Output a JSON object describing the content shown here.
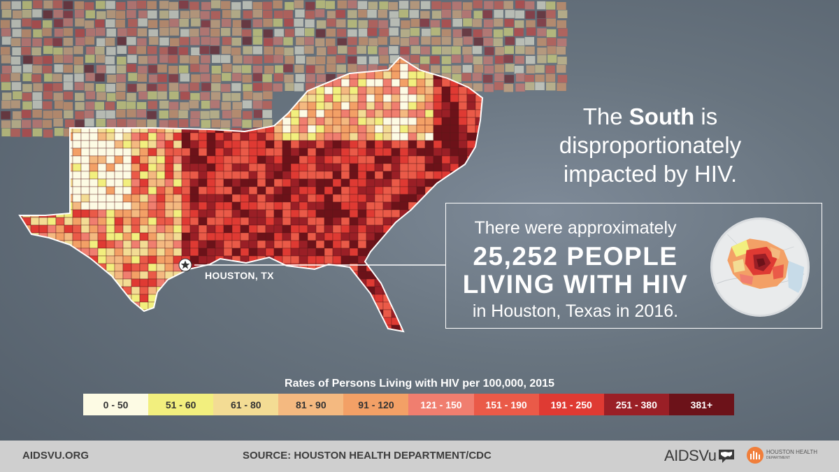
{
  "headline": {
    "line1_prefix": "The ",
    "line1_bold": "South",
    "line1_suffix": " is",
    "line2": "disproportionately",
    "line3": "impacted by HIV."
  },
  "callout": {
    "intro": "There were approximately",
    "big_line1": "25,252 PEOPLE",
    "big_line2": "LIVING WITH HIV",
    "outro": "in Houston, Texas in 2016."
  },
  "map": {
    "marker_label": "HOUSTON, TX"
  },
  "legend": {
    "title": "Rates of Persons Living with HIV per 100,000, 2015",
    "bins": [
      {
        "label": "0 - 50",
        "color": "#fdfbe4",
        "text_color": "#333333"
      },
      {
        "label": "51 - 60",
        "color": "#f2ef7e",
        "text_color": "#333333"
      },
      {
        "label": "61 - 80",
        "color": "#f3dc94",
        "text_color": "#333333"
      },
      {
        "label": "81 - 90",
        "color": "#f4b980",
        "text_color": "#333333"
      },
      {
        "label": "91 - 120",
        "color": "#f3a066",
        "text_color": "#333333"
      },
      {
        "label": "121 - 150",
        "color": "#f07e6f",
        "text_color": "#ffffff"
      },
      {
        "label": "151 - 190",
        "color": "#ea5a48",
        "text_color": "#ffffff"
      },
      {
        "label": "191 - 250",
        "color": "#df3a33",
        "text_color": "#ffffff"
      },
      {
        "label": "251 - 380",
        "color": "#9a1f26",
        "text_color": "#ffffff"
      },
      {
        "label": "381+",
        "color": "#6c1219",
        "text_color": "#ffffff"
      }
    ]
  },
  "footer": {
    "site": "AIDSVU.ORG",
    "source": "SOURCE: HOUSTON HEALTH DEPARTMENT/CDC",
    "brand": "AIDSVu",
    "partner_line1": "HOUSTON HEALTH",
    "partner_line2": "DEPARTMENT"
  },
  "icons": [
    "star-marker-icon",
    "us-map-speech-bubble-icon",
    "houston-health-department-icon"
  ]
}
